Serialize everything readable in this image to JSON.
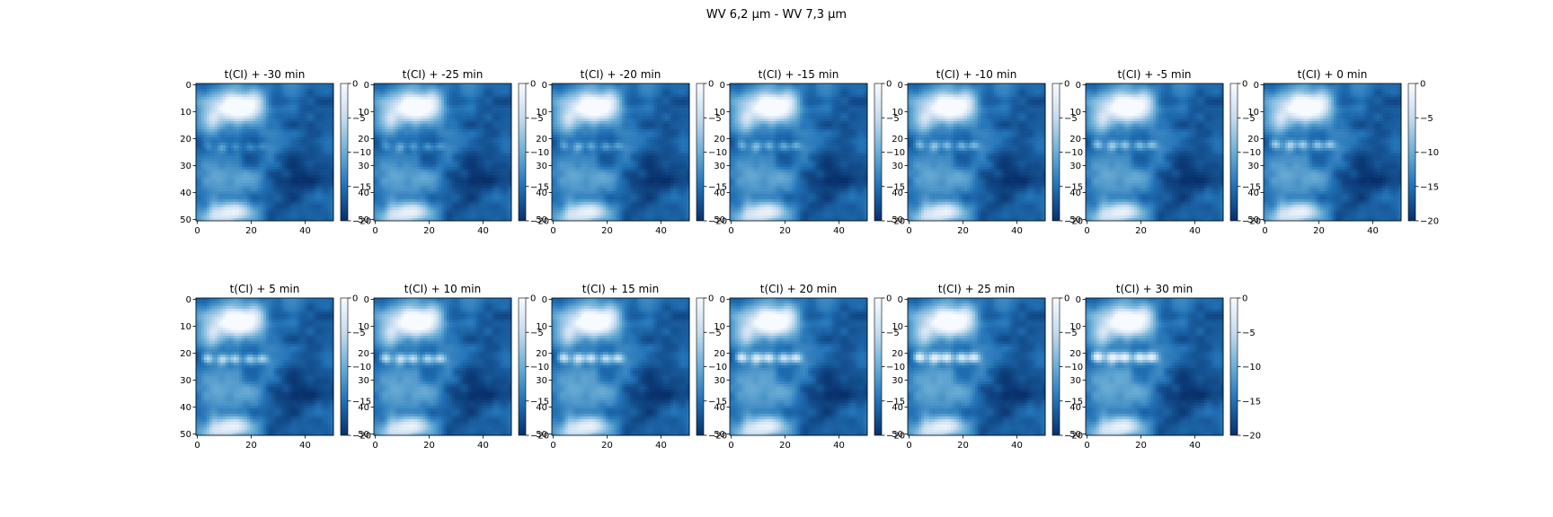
{
  "figure": {
    "suptitle": "WV 6,2 µm - WV 7,3 µm"
  },
  "chart_data": {
    "type": "heatmap",
    "colormap": "Blues_r",
    "colors": {
      "low": "#08306b",
      "mid": "#4292c6",
      "high": "#f7fbff"
    },
    "image_axes": {
      "x_ticks": [
        0,
        20,
        40
      ],
      "y_ticks": [
        0,
        10,
        20,
        30,
        40,
        50
      ],
      "xlim": [
        0,
        51
      ],
      "ylim": [
        51,
        0
      ]
    },
    "colorbar": {
      "range": [
        -20,
        0
      ],
      "ticks": [
        0,
        -5,
        -10,
        -15,
        -20
      ]
    },
    "panels": [
      {
        "title": "t(CI) + -30 min",
        "row": 0,
        "col": 0,
        "offset_min": -30
      },
      {
        "title": "t(CI) + -25 min",
        "row": 0,
        "col": 1,
        "offset_min": -25
      },
      {
        "title": "t(CI) + -20 min",
        "row": 0,
        "col": 2,
        "offset_min": -20
      },
      {
        "title": "t(CI) + -15 min",
        "row": 0,
        "col": 3,
        "offset_min": -15
      },
      {
        "title": "t(CI) + -10 min",
        "row": 0,
        "col": 4,
        "offset_min": -10
      },
      {
        "title": "t(CI) + -5 min",
        "row": 0,
        "col": 5,
        "offset_min": -5
      },
      {
        "title": "t(CI) + 0 min",
        "row": 0,
        "col": 6,
        "offset_min": 0
      },
      {
        "title": "t(CI) + 5 min",
        "row": 1,
        "col": 0,
        "offset_min": 5
      },
      {
        "title": "t(CI) + 10 min",
        "row": 1,
        "col": 1,
        "offset_min": 10
      },
      {
        "title": "t(CI) + 15 min",
        "row": 1,
        "col": 2,
        "offset_min": 15
      },
      {
        "title": "t(CI) + 20 min",
        "row": 1,
        "col": 3,
        "offset_min": 20
      },
      {
        "title": "t(CI) + 25 min",
        "row": 1,
        "col": 4,
        "offset_min": 25
      },
      {
        "title": "t(CI) + 30 min",
        "row": 1,
        "col": 5,
        "offset_min": 30
      }
    ],
    "features": {
      "upper_cloud_mass": {
        "x": 10,
        "y": 8,
        "value": 0
      },
      "lower_cloud_mass": {
        "x": 12,
        "y": 47,
        "value": -3
      },
      "convective_cells_row_y": 23
    }
  }
}
